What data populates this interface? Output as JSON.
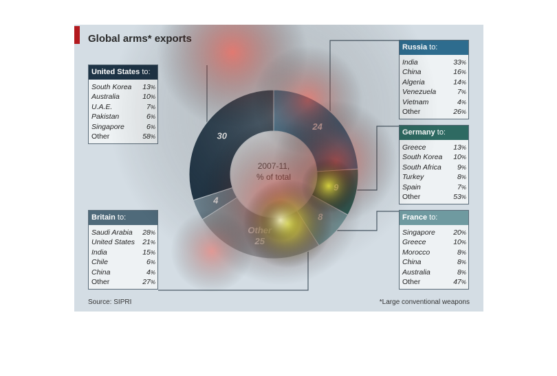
{
  "title": "Global arms* exports",
  "source": "Source: SIPRI",
  "footnote": "*Large conventional weapons",
  "chart_data": {
    "type": "pie",
    "title": "Global arms* exports",
    "center_label": [
      "2007-11,",
      "% of total"
    ],
    "slices": [
      {
        "label": "Russia",
        "value": 24,
        "color": "#2e6c8e"
      },
      {
        "label": "Germany",
        "value": 9,
        "color": "#2e6a62"
      },
      {
        "label": "France",
        "value": 8,
        "color": "#7aa6ab"
      },
      {
        "label": "Other",
        "value": 25,
        "color": "#9aa4aa",
        "display": "Other\n25"
      },
      {
        "label": "Britain",
        "value": 4,
        "color": "#6f8592"
      },
      {
        "label": "United States",
        "value": 30,
        "color": "#1e3446"
      }
    ],
    "breakdowns": [
      {
        "country": "United States",
        "to": " to:",
        "header_color": "#1e3446",
        "rows": [
          [
            "South Korea",
            "13"
          ],
          [
            "Australia",
            "10"
          ],
          [
            "U.A.E.",
            "7"
          ],
          [
            "Pakistan",
            "6"
          ],
          [
            "Singapore",
            "6"
          ],
          [
            "Other",
            "58"
          ]
        ]
      },
      {
        "country": "Russia",
        "to": " to:",
        "header_color": "#2e6c8e",
        "rows": [
          [
            "India",
            "33"
          ],
          [
            "China",
            "16"
          ],
          [
            "Algeria",
            "14"
          ],
          [
            "Venezuela",
            "7"
          ],
          [
            "Vietnam",
            "4"
          ],
          [
            "Other",
            "26"
          ]
        ]
      },
      {
        "country": "Germany",
        "to": " to:",
        "header_color": "#2e6a62",
        "rows": [
          [
            "Greece",
            "13"
          ],
          [
            "South Korea",
            "10"
          ],
          [
            "South Africa",
            "9"
          ],
          [
            "Turkey",
            "8"
          ],
          [
            "Spain",
            "7"
          ],
          [
            "Other",
            "53"
          ]
        ]
      },
      {
        "country": "Britain",
        "to": " to:",
        "header_color": "#4f6a7a",
        "rows": [
          [
            "Saudi Arabia",
            "28"
          ],
          [
            "United States",
            "21"
          ],
          [
            "India",
            "15"
          ],
          [
            "Chile",
            "6"
          ],
          [
            "China",
            "4"
          ],
          [
            "Other",
            "27"
          ]
        ]
      },
      {
        "country": "France",
        "to": " to:",
        "header_color": "#6f9aa0",
        "rows": [
          [
            "Singapore",
            "20"
          ],
          [
            "Greece",
            "10"
          ],
          [
            "Morocco",
            "8"
          ],
          [
            "China",
            "8"
          ],
          [
            "Australia",
            "8"
          ],
          [
            "Other",
            "47"
          ]
        ]
      }
    ],
    "percent_symbol": "%"
  },
  "heatmap_overlay": {
    "colors": {
      "hot": "#ffff40",
      "warm": "#ff3c28",
      "cool": "#b0b0b0"
    }
  }
}
